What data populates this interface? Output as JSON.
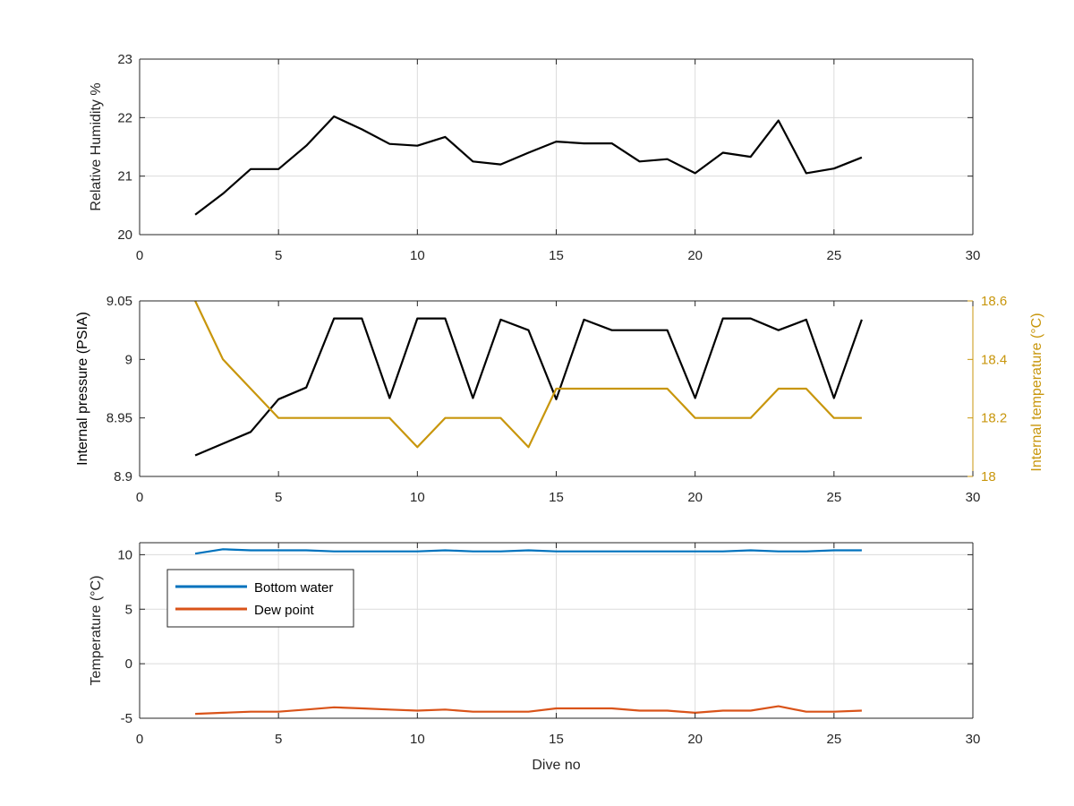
{
  "colors": {
    "black": "#000000",
    "gold": "#c8960c",
    "blue": "#0072bd",
    "orange": "#d95319",
    "grid": "#dcdcdc",
    "axis": "#262626"
  },
  "chart_data": [
    {
      "type": "line",
      "xlabel": "",
      "ylabel": "Relative Humidity %",
      "xlim": [
        0,
        30
      ],
      "ylim": [
        20,
        23
      ],
      "xticks": [
        0,
        5,
        10,
        15,
        20,
        25,
        30
      ],
      "yticks": [
        20,
        21,
        22,
        23
      ],
      "grid": true,
      "series": [
        {
          "color": "#000000",
          "x": [
            2,
            3,
            4,
            5,
            6,
            7,
            8,
            9,
            10,
            11,
            12,
            13,
            14,
            15,
            16,
            17,
            18,
            19,
            20,
            21,
            22,
            23,
            24,
            25,
            26
          ],
          "y": [
            20.34,
            20.7,
            21.12,
            21.12,
            21.52,
            22.02,
            21.8,
            21.55,
            21.52,
            21.67,
            21.25,
            21.2,
            21.4,
            21.59,
            21.56,
            21.56,
            21.25,
            21.29,
            21.05,
            21.4,
            21.33,
            21.95,
            21.05,
            21.13,
            21.32
          ]
        }
      ]
    },
    {
      "type": "line",
      "xlabel": "",
      "ylabel": "Internal pressure (PSIA)",
      "ylabel_right": "Internal temperature (°C)",
      "xlim": [
        0,
        30
      ],
      "ylim": [
        8.9,
        9.05
      ],
      "ylim_right": [
        18,
        18.6
      ],
      "xticks": [
        0,
        5,
        10,
        15,
        20,
        25,
        30
      ],
      "yticks": [
        8.9,
        8.95,
        9,
        9.05
      ],
      "yticks_right": [
        18,
        18.2,
        18.4,
        18.6
      ],
      "grid": false,
      "series": [
        {
          "axis": "left",
          "color": "#000000",
          "x": [
            2,
            3,
            4,
            5,
            6,
            7,
            8,
            9,
            10,
            11,
            12,
            13,
            14,
            15,
            16,
            17,
            18,
            19,
            20,
            21,
            22,
            23,
            24,
            25,
            26
          ],
          "y": [
            8.918,
            8.928,
            8.938,
            8.966,
            8.976,
            9.035,
            9.035,
            8.967,
            9.035,
            9.035,
            8.967,
            9.034,
            9.025,
            8.966,
            9.034,
            9.025,
            9.025,
            9.025,
            8.967,
            9.035,
            9.035,
            9.025,
            9.034,
            8.967,
            9.034
          ]
        },
        {
          "axis": "right",
          "color": "#c8960c",
          "x": [
            2,
            3,
            4,
            5,
            6,
            7,
            8,
            9,
            10,
            11,
            12,
            13,
            14,
            15,
            16,
            17,
            18,
            19,
            20,
            21,
            22,
            23,
            24,
            25,
            26
          ],
          "y": [
            18.6,
            18.4,
            18.3,
            18.2,
            18.2,
            18.2,
            18.2,
            18.2,
            18.1,
            18.2,
            18.2,
            18.2,
            18.1,
            18.3,
            18.3,
            18.3,
            18.3,
            18.3,
            18.2,
            18.2,
            18.2,
            18.3,
            18.3,
            18.2,
            18.2
          ]
        }
      ]
    },
    {
      "type": "line",
      "xlabel": "Dive no",
      "ylabel": "Temperature (°C)",
      "xlim": [
        0,
        30
      ],
      "ylim": [
        -5,
        11.1
      ],
      "xticks": [
        0,
        5,
        10,
        15,
        20,
        25,
        30
      ],
      "yticks": [
        -5,
        0,
        5,
        10
      ],
      "grid": true,
      "legend": "top-left",
      "series": [
        {
          "name": "Bottom water",
          "color": "#0072bd",
          "x": [
            2,
            3,
            4,
            5,
            6,
            7,
            8,
            9,
            10,
            11,
            12,
            13,
            14,
            15,
            16,
            17,
            18,
            19,
            20,
            21,
            22,
            23,
            24,
            25,
            26
          ],
          "y": [
            10.1,
            10.5,
            10.4,
            10.4,
            10.4,
            10.3,
            10.3,
            10.3,
            10.3,
            10.4,
            10.3,
            10.3,
            10.4,
            10.3,
            10.3,
            10.3,
            10.3,
            10.3,
            10.3,
            10.3,
            10.4,
            10.3,
            10.3,
            10.4,
            10.4
          ]
        },
        {
          "name": "Dew point",
          "color": "#d95319",
          "x": [
            2,
            3,
            4,
            5,
            6,
            7,
            8,
            9,
            10,
            11,
            12,
            13,
            14,
            15,
            16,
            17,
            18,
            19,
            20,
            21,
            22,
            23,
            24,
            25,
            26
          ],
          "y": [
            -4.6,
            -4.5,
            -4.4,
            -4.4,
            -4.2,
            -4.0,
            -4.1,
            -4.2,
            -4.3,
            -4.2,
            -4.4,
            -4.4,
            -4.4,
            -4.1,
            -4.1,
            -4.1,
            -4.3,
            -4.3,
            -4.5,
            -4.3,
            -4.3,
            -3.9,
            -4.4,
            -4.4,
            -4.3
          ]
        }
      ]
    }
  ]
}
